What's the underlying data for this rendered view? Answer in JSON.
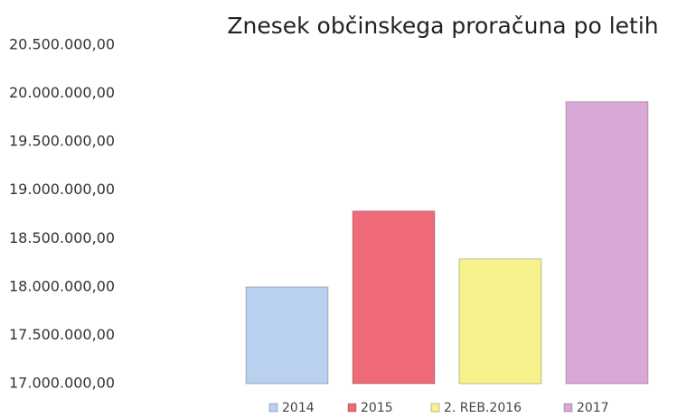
{
  "chart_data": {
    "type": "bar",
    "title": "Znesek občinskega proračuna po letih",
    "series": [
      {
        "name": "2014",
        "color": "#b9d0ef",
        "values": [
          18000000
        ]
      },
      {
        "name": "2015",
        "color": "#ef6b79",
        "values": [
          18785000
        ]
      },
      {
        "name": "2. REB.2016",
        "color": "#f7f38c",
        "values": [
          18290000
        ]
      },
      {
        "name": "2017",
        "color": "#d9a8d6",
        "values": [
          19915000
        ]
      }
    ],
    "ylim": [
      17000000,
      20500000
    ],
    "yticks": [
      {
        "value": 17000000,
        "label": "17.000.000,00"
      },
      {
        "value": 17500000,
        "label": "17.500.000,00"
      },
      {
        "value": 18000000,
        "label": "18.000.000,00"
      },
      {
        "value": 18500000,
        "label": "18.500.000,00"
      },
      {
        "value": 19000000,
        "label": "19.000.000,00"
      },
      {
        "value": 19500000,
        "label": "19.500.000,00"
      },
      {
        "value": 20000000,
        "label": "20.000.000,00"
      },
      {
        "value": 20500000,
        "label": "20.500.000,00"
      }
    ],
    "grid": false,
    "legend": "bottom"
  }
}
